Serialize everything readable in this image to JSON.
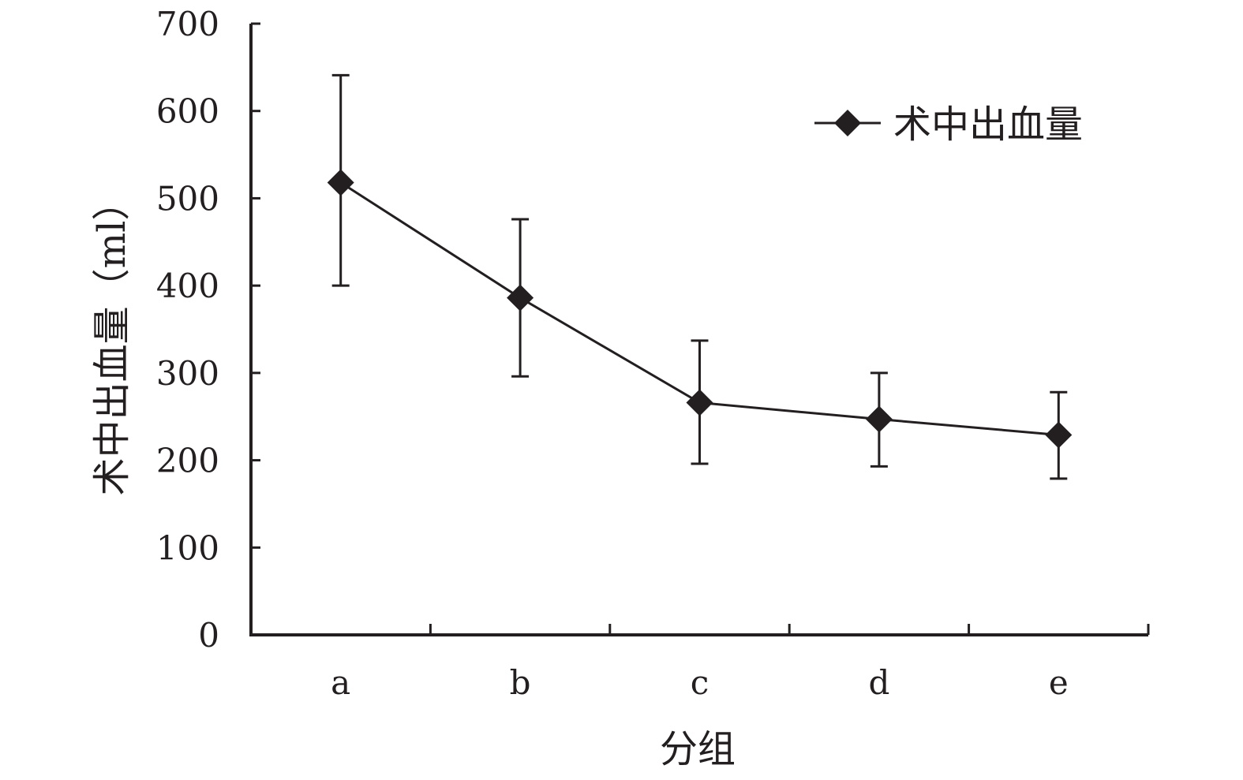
{
  "chart_data": {
    "type": "line",
    "categories": [
      "a",
      "b",
      "c",
      "d",
      "e"
    ],
    "series": [
      {
        "name": "术中出血量",
        "values": [
          518,
          386,
          266,
          247,
          229
        ],
        "error_upper": [
          641,
          476,
          337,
          300,
          278
        ],
        "error_lower": [
          400,
          296,
          196,
          193,
          179
        ],
        "marker": "diamond"
      }
    ],
    "title": "",
    "xlabel": "分组",
    "ylabel": "术中出血量（ml）",
    "ylim": [
      0,
      700
    ],
    "yticks": [
      0,
      100,
      200,
      300,
      400,
      500,
      600,
      700
    ],
    "grid": false,
    "legend_position": "top-right"
  },
  "colors": {
    "line": "#231f20",
    "text": "#231f20",
    "background": "#ffffff"
  }
}
